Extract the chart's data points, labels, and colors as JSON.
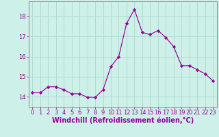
{
  "x": [
    0,
    1,
    2,
    3,
    4,
    5,
    6,
    7,
    8,
    9,
    10,
    11,
    12,
    13,
    14,
    15,
    16,
    17,
    18,
    19,
    20,
    21,
    22,
    23
  ],
  "y": [
    14.2,
    14.2,
    14.5,
    14.5,
    14.35,
    14.15,
    14.15,
    13.98,
    13.97,
    14.35,
    15.5,
    16.0,
    17.65,
    18.35,
    17.2,
    17.1,
    17.3,
    16.95,
    16.5,
    15.55,
    15.55,
    15.35,
    15.15,
    14.8
  ],
  "line_color": "#990099",
  "marker": "D",
  "marker_size": 2.2,
  "bg_color": "#cdf0e8",
  "grid_color": "#b0ddd0",
  "xlabel": "Windchill (Refroidissement éolien,°C)",
  "xlabel_color": "#990099",
  "tick_color": "#990099",
  "ylim": [
    13.5,
    18.75
  ],
  "xlim": [
    -0.5,
    23.5
  ],
  "yticks": [
    14,
    15,
    16,
    17,
    18
  ],
  "xticks": [
    0,
    1,
    2,
    3,
    4,
    5,
    6,
    7,
    8,
    9,
    10,
    11,
    12,
    13,
    14,
    15,
    16,
    17,
    18,
    19,
    20,
    21,
    22,
    23
  ],
  "font_size": 6.0,
  "xlabel_fontsize": 7.0,
  "spine_color": "#888888"
}
